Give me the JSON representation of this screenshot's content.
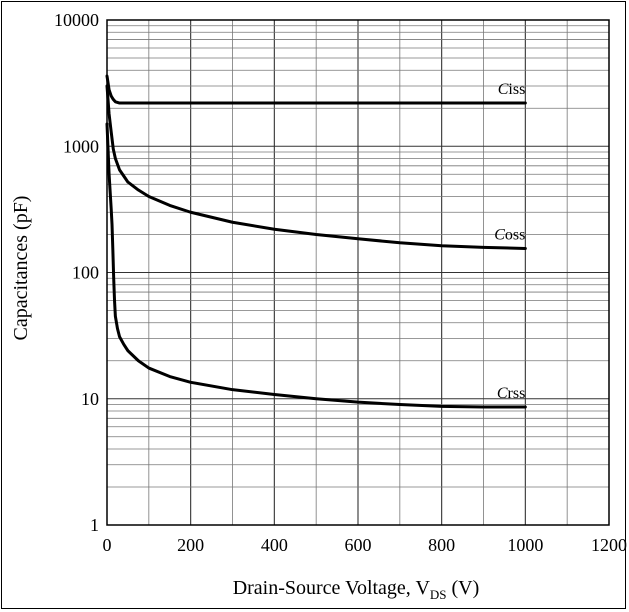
{
  "chart_data": {
    "type": "line",
    "title": "",
    "xlabel": "Drain-Source Voltage, V",
    "xlabel_sub": "DS",
    "xlabel_unit": " (V)",
    "ylabel": "Capacitances (pF)",
    "xlim": [
      0,
      1200
    ],
    "ylim": [
      1,
      10000
    ],
    "yscale": "log",
    "grid": true,
    "x_ticks": [
      "0",
      "200",
      "400",
      "600",
      "800",
      "1000",
      "1200"
    ],
    "y_ticks": [
      "1",
      "10",
      "100",
      "1000",
      "10000"
    ],
    "series": [
      {
        "name": "Ciss",
        "label_italic": "C",
        "label_rest": "iss",
        "x": [
          0,
          5,
          10,
          15,
          20,
          30,
          50,
          100,
          200,
          400,
          600,
          800,
          1000
        ],
        "y": [
          3600,
          2800,
          2500,
          2350,
          2250,
          2200,
          2200,
          2200,
          2200,
          2200,
          2200,
          2200,
          2200
        ]
      },
      {
        "name": "Coss",
        "label_italic": "C",
        "label_rest": "oss",
        "x": [
          0,
          5,
          10,
          15,
          20,
          30,
          50,
          75,
          100,
          150,
          200,
          300,
          400,
          500,
          600,
          700,
          800,
          900,
          1000
        ],
        "y": [
          3000,
          1800,
          1300,
          950,
          800,
          650,
          520,
          450,
          400,
          340,
          300,
          250,
          220,
          200,
          185,
          172,
          163,
          158,
          155
        ]
      },
      {
        "name": "Crss",
        "label_italic": "C",
        "label_rest": "rss",
        "x": [
          0,
          5,
          10,
          12,
          14,
          16,
          18,
          20,
          25,
          30,
          40,
          50,
          75,
          100,
          150,
          200,
          300,
          400,
          500,
          600,
          700,
          800,
          900,
          1000
        ],
        "y": [
          1500,
          600,
          320,
          240,
          150,
          90,
          60,
          45,
          36,
          31,
          27,
          24,
          20,
          17.5,
          15,
          13.5,
          11.8,
          10.8,
          10.0,
          9.4,
          9.0,
          8.7,
          8.6,
          8.6
        ]
      }
    ]
  }
}
